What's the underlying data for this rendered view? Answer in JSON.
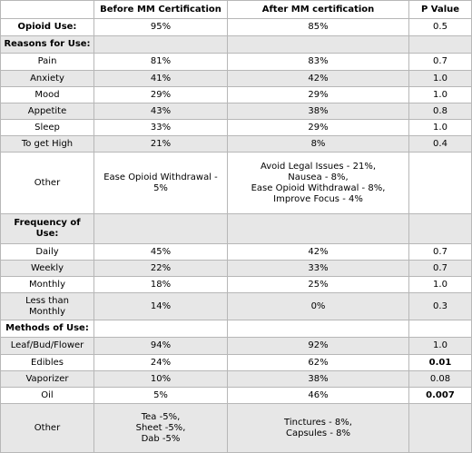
{
  "headers": [
    "",
    "Before MM Certification",
    "After MM certification",
    "P Value"
  ],
  "rows": {
    "opioid_use": {
      "label": "Opioid Use:",
      "before": "95%",
      "after": "85%",
      "p": "0.5"
    },
    "reasons_header": "Reasons for Use:",
    "pain": {
      "label": "Pain",
      "before": "81%",
      "after": "83%",
      "p": "0.7"
    },
    "anxiety": {
      "label": "Anxiety",
      "before": "41%",
      "after": "42%",
      "p": "1.0"
    },
    "mood": {
      "label": "Mood",
      "before": "29%",
      "after": "29%",
      "p": "1.0"
    },
    "appetite": {
      "label": "Appetite",
      "before": "43%",
      "after": "38%",
      "p": "0.8"
    },
    "sleep": {
      "label": "Sleep",
      "before": "33%",
      "after": "29%",
      "p": "1.0"
    },
    "high": {
      "label": "To get High",
      "before": "21%",
      "after": "8%",
      "p": "0.4"
    },
    "other_reasons": {
      "label": "Other",
      "before": "Ease Opioid Withdrawal - 5%",
      "after_lines": [
        "Avoid Legal Issues -  21%,",
        "Nausea - 8%,",
        "Ease Opioid Withdrawal - 8%,",
        "Improve Focus - 4%"
      ],
      "p": ""
    },
    "frequency_header_lines": [
      "Frequency of",
      "Use:"
    ],
    "daily": {
      "label": "Daily",
      "before": "45%",
      "after": "42%",
      "p": "0.7"
    },
    "weekly": {
      "label": "Weekly",
      "before": "22%",
      "after": "33%",
      "p": "0.7"
    },
    "monthly": {
      "label": "Monthly",
      "before": "18%",
      "after": "25%",
      "p": "1.0"
    },
    "less_monthly": {
      "label_lines": [
        "Less than",
        "Monthly"
      ],
      "before": "14%",
      "after": "0%",
      "p": "0.3"
    },
    "methods_header": "Methods of Use:",
    "flower": {
      "label": "Leaf/Bud/Flower",
      "before": "94%",
      "after": "92%",
      "p": "1.0"
    },
    "edibles": {
      "label": "Edibles",
      "before": "24%",
      "after": "62%",
      "p": "0.01"
    },
    "vaporizer": {
      "label": "Vaporizer",
      "before": "10%",
      "after": "38%",
      "p": "0.08"
    },
    "oil": {
      "label": "Oil",
      "before": "5%",
      "after": "46%",
      "p": "0.007"
    },
    "other_methods": {
      "label": "Other",
      "before_lines": [
        "Tea -5%,",
        "Sheet -5%,",
        "Dab -5%"
      ],
      "after_lines": [
        "Tinctures - 8%,",
        "Capsules - 8%"
      ],
      "p": ""
    }
  }
}
